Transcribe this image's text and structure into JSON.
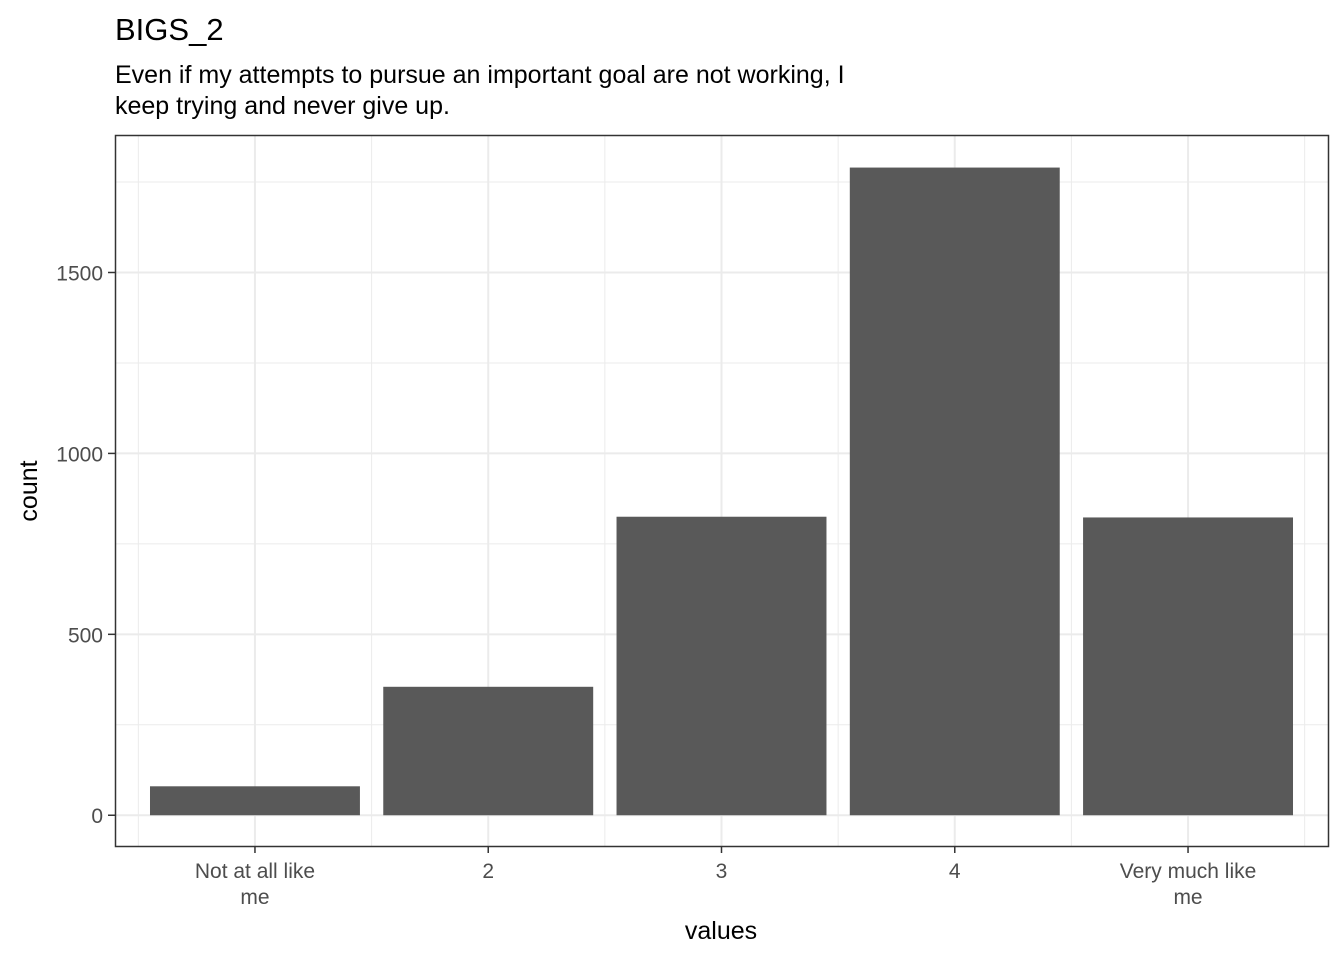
{
  "chart_data": {
    "type": "bar",
    "title": "BIGS_2",
    "subtitle": [
      "Even if my attempts to pursue an important goal are not working, I",
      "keep trying and never give up."
    ],
    "xlabel": "values",
    "ylabel": "count",
    "categories": [
      [
        "Not at all like",
        "me"
      ],
      [
        "2"
      ],
      [
        "3"
      ],
      [
        "4"
      ],
      [
        "Very much like",
        "me"
      ]
    ],
    "values": [
      80,
      355,
      825,
      1790,
      823
    ],
    "ylim": [
      -85,
      1880
    ],
    "yticks": [
      0,
      500,
      1000,
      1500
    ],
    "ytick_labels": [
      "0",
      "500",
      "1000",
      "1500"
    ],
    "grid": true,
    "bar_color": "#595959",
    "panel_border_color": "#333333",
    "grid_color": "#ebebeb"
  }
}
